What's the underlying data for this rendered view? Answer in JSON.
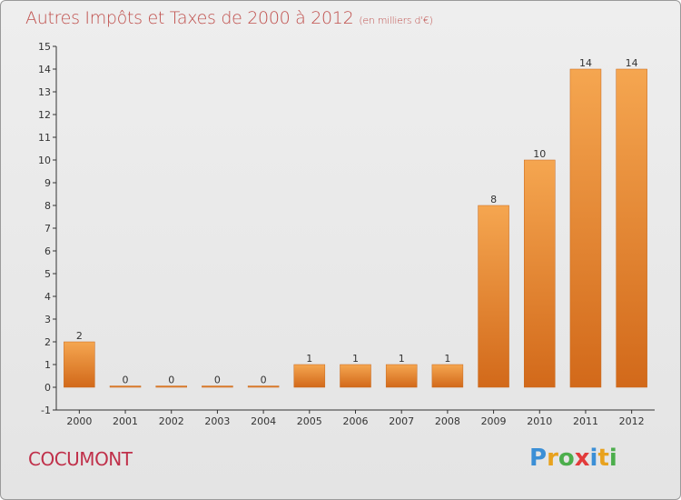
{
  "chart_data": {
    "type": "bar",
    "title": "Autres Impôts et Taxes de 2000 à 2012",
    "subtitle": "(en milliers d'€)",
    "categories": [
      "2000",
      "2001",
      "2002",
      "2003",
      "2004",
      "2005",
      "2006",
      "2007",
      "2008",
      "2009",
      "2010",
      "2011",
      "2012"
    ],
    "values": [
      2,
      0,
      0,
      0,
      0,
      1,
      1,
      1,
      1,
      8,
      10,
      14,
      14
    ],
    "ylim": [
      -1,
      15
    ],
    "yticks": [
      -1,
      0,
      1,
      2,
      3,
      4,
      5,
      6,
      7,
      8,
      9,
      10,
      11,
      12,
      13,
      14,
      15
    ],
    "xlabel": "",
    "ylabel": "",
    "grid": false,
    "bar_color": "#f29b46"
  },
  "place_name": "COCUMONT",
  "logo": {
    "letters": [
      "P",
      "r",
      "o",
      "x",
      "i",
      "t",
      "i"
    ],
    "colors": [
      "#3b8fd6",
      "#e8a21e",
      "#4cae4c",
      "#e23b3b",
      "#3b8fd6",
      "#e8a21e",
      "#4cae4c"
    ]
  }
}
